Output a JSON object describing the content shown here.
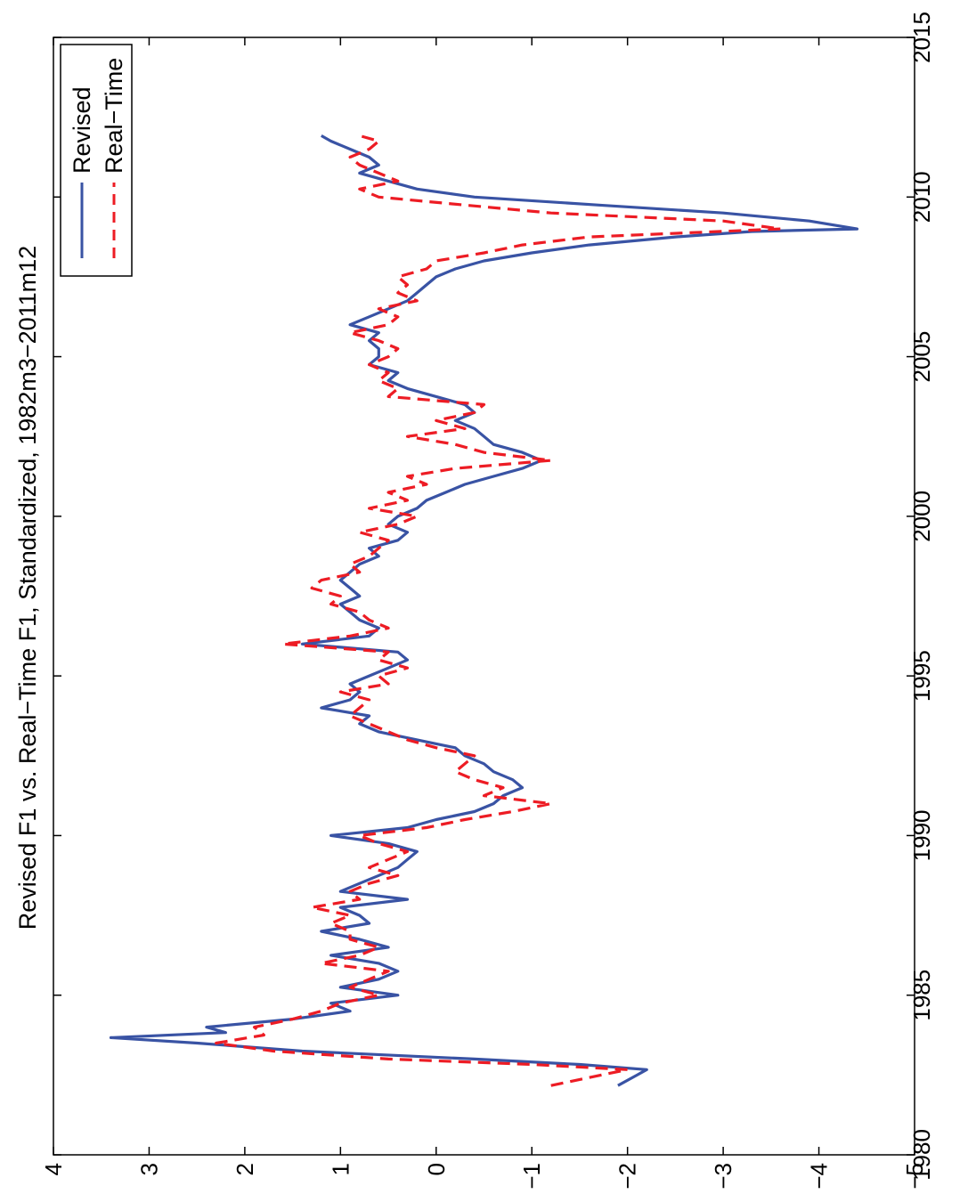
{
  "chart_data": {
    "type": "line",
    "orientation": "rotated-90-clockwise",
    "title": "Revised F1 vs. Real−Time F1, Standardized, 1982m3−2011m12",
    "xlabel": "",
    "ylabel": "",
    "xlim": [
      1980,
      2015
    ],
    "ylim": [
      -5,
      4
    ],
    "x_ticks": [
      "1980",
      "1985",
      "1990",
      "1995",
      "2000",
      "2005",
      "2010",
      "2015"
    ],
    "y_ticks": [
      "4",
      "3",
      "2",
      "1",
      "0",
      "−1",
      "−2",
      "−3",
      "−4",
      "−5"
    ],
    "legend_position": "top-left",
    "grid": false,
    "series": [
      {
        "name": "Revised",
        "style": "solid",
        "color": "#3953a4",
        "x": [
          1982.17,
          1982.5,
          1982.67,
          1982.83,
          1983.0,
          1983.25,
          1983.5,
          1983.67,
          1983.83,
          1984.0,
          1984.25,
          1984.5,
          1984.75,
          1985.0,
          1985.25,
          1985.5,
          1985.75,
          1986.0,
          1986.25,
          1986.5,
          1986.75,
          1987.0,
          1987.25,
          1987.5,
          1987.75,
          1988.0,
          1988.25,
          1988.5,
          1988.75,
          1989.0,
          1989.25,
          1989.5,
          1989.75,
          1990.0,
          1990.25,
          1990.5,
          1990.75,
          1991.0,
          1991.25,
          1991.5,
          1991.75,
          1992.0,
          1992.25,
          1992.5,
          1992.75,
          1993.0,
          1993.25,
          1993.5,
          1993.75,
          1994.0,
          1994.25,
          1994.5,
          1994.75,
          1995.0,
          1995.25,
          1995.5,
          1995.75,
          1996.0,
          1996.25,
          1996.5,
          1996.75,
          1997.0,
          1997.25,
          1997.5,
          1997.75,
          1998.0,
          1998.25,
          1998.5,
          1998.75,
          1999.0,
          1999.25,
          1999.5,
          1999.75,
          2000.0,
          2000.25,
          2000.5,
          2000.75,
          2001.0,
          2001.25,
          2001.5,
          2001.75,
          2002.0,
          2002.25,
          2002.5,
          2002.75,
          2003.0,
          2003.25,
          2003.5,
          2003.75,
          2004.0,
          2004.25,
          2004.5,
          2004.75,
          2005.0,
          2005.25,
          2005.5,
          2005.75,
          2006.0,
          2006.25,
          2006.5,
          2006.75,
          2007.0,
          2007.25,
          2007.5,
          2007.75,
          2008.0,
          2008.25,
          2008.5,
          2008.75,
          2008.92,
          2009.0,
          2009.25,
          2009.5,
          2009.75,
          2010.0,
          2010.25,
          2010.5,
          2010.75,
          2011.0,
          2011.25,
          2011.5,
          2011.75,
          2011.92
        ],
        "y": [
          -1.9,
          -2.1,
          -2.2,
          -1.5,
          -0.4,
          1.4,
          2.5,
          3.4,
          2.2,
          2.4,
          1.5,
          0.9,
          1.1,
          0.4,
          1.0,
          0.6,
          0.4,
          0.6,
          1.1,
          0.5,
          0.8,
          1.2,
          0.7,
          0.8,
          1.0,
          0.3,
          1.0,
          0.8,
          0.6,
          0.4,
          0.3,
          0.2,
          0.5,
          1.1,
          0.3,
          0.0,
          -0.4,
          -0.6,
          -0.7,
          -0.9,
          -0.8,
          -0.6,
          -0.5,
          -0.3,
          -0.2,
          0.2,
          0.6,
          0.8,
          0.7,
          1.2,
          0.9,
          0.8,
          0.9,
          0.7,
          0.5,
          0.3,
          0.4,
          1.4,
          0.7,
          0.6,
          0.8,
          0.9,
          1.0,
          0.8,
          0.9,
          1.0,
          0.9,
          0.8,
          0.6,
          0.7,
          0.4,
          0.3,
          0.5,
          0.4,
          0.2,
          0.1,
          -0.1,
          -0.3,
          -0.6,
          -0.9,
          -1.1,
          -0.9,
          -0.6,
          -0.5,
          -0.4,
          -0.2,
          -0.4,
          -0.3,
          0.0,
          0.3,
          0.5,
          0.4,
          0.7,
          0.6,
          0.6,
          0.7,
          0.6,
          0.9,
          0.7,
          0.5,
          0.3,
          0.2,
          0.1,
          0.0,
          -0.2,
          -0.5,
          -1.0,
          -1.6,
          -2.5,
          -3.3,
          -4.4,
          -3.9,
          -3.0,
          -1.7,
          -0.4,
          0.2,
          0.5,
          0.8,
          0.6,
          0.7,
          0.9,
          1.1,
          1.2
        ]
      },
      {
        "name": "Real−Time",
        "style": "dashed",
        "color": "#ed1c24",
        "x": [
          1982.17,
          1982.42,
          1982.67,
          1982.83,
          1983.0,
          1983.25,
          1983.5,
          1983.75,
          1984.0,
          1984.25,
          1984.5,
          1984.75,
          1985.0,
          1985.25,
          1985.5,
          1985.75,
          1986.0,
          1986.25,
          1986.5,
          1986.75,
          1987.0,
          1987.25,
          1987.5,
          1987.75,
          1988.0,
          1988.25,
          1988.5,
          1988.75,
          1989.0,
          1989.25,
          1989.5,
          1989.75,
          1990.0,
          1990.25,
          1990.5,
          1990.75,
          1991.0,
          1991.25,
          1991.5,
          1991.75,
          1992.0,
          1992.25,
          1992.5,
          1992.75,
          1993.0,
          1993.25,
          1993.5,
          1993.75,
          1994.0,
          1994.25,
          1994.5,
          1994.75,
          1995.0,
          1995.25,
          1995.5,
          1995.75,
          1996.0,
          1996.25,
          1996.5,
          1996.75,
          1997.0,
          1997.25,
          1997.5,
          1997.75,
          1998.0,
          1998.25,
          1998.5,
          1998.75,
          1999.0,
          1999.25,
          1999.5,
          1999.75,
          2000.0,
          2000.25,
          2000.5,
          2000.75,
          2001.0,
          2001.25,
          2001.5,
          2001.75,
          2002.0,
          2002.25,
          2002.5,
          2002.75,
          2003.0,
          2003.25,
          2003.5,
          2003.75,
          2004.0,
          2004.25,
          2004.5,
          2004.75,
          2005.0,
          2005.25,
          2005.5,
          2005.75,
          2006.0,
          2006.25,
          2006.5,
          2006.75,
          2007.0,
          2007.25,
          2007.5,
          2007.75,
          2008.0,
          2008.25,
          2008.5,
          2008.75,
          2009.0,
          2009.25,
          2009.5,
          2009.75,
          2010.0,
          2010.25,
          2010.5,
          2010.75,
          2011.0,
          2011.25,
          2011.5,
          2011.75,
          2011.92
        ],
        "y": [
          -1.2,
          -1.6,
          -2.0,
          -1.0,
          0.5,
          1.7,
          2.3,
          1.8,
          1.9,
          1.5,
          1.2,
          1.0,
          0.6,
          0.9,
          0.7,
          0.5,
          1.2,
          0.8,
          0.6,
          0.9,
          0.9,
          1.1,
          0.9,
          1.3,
          0.8,
          0.9,
          0.7,
          0.4,
          0.7,
          0.5,
          0.3,
          0.6,
          0.8,
          0.1,
          -0.3,
          -0.8,
          -1.2,
          -0.5,
          -0.7,
          -0.4,
          -0.2,
          -0.3,
          -0.4,
          0.0,
          0.3,
          0.5,
          0.7,
          0.9,
          0.8,
          0.7,
          1.0,
          0.5,
          0.6,
          0.3,
          0.6,
          0.5,
          1.6,
          0.9,
          0.5,
          0.7,
          0.8,
          1.1,
          1.0,
          1.3,
          1.2,
          0.8,
          0.9,
          0.7,
          0.6,
          0.5,
          0.8,
          0.4,
          0.2,
          0.7,
          0.3,
          0.5,
          0.1,
          0.3,
          -0.2,
          -1.2,
          -0.5,
          -0.2,
          0.3,
          -0.3,
          0.0,
          -0.4,
          -0.5,
          0.5,
          0.4,
          0.6,
          0.5,
          0.7,
          0.5,
          0.4,
          0.6,
          0.9,
          0.5,
          0.4,
          0.6,
          0.2,
          0.4,
          0.3,
          0.4,
          0.1,
          0.0,
          -0.5,
          -0.9,
          -1.6,
          -3.6,
          -3.0,
          -1.2,
          -0.3,
          0.6,
          0.8,
          0.4,
          0.6,
          0.8,
          0.9,
          0.7,
          0.6,
          0.8
        ]
      }
    ]
  }
}
